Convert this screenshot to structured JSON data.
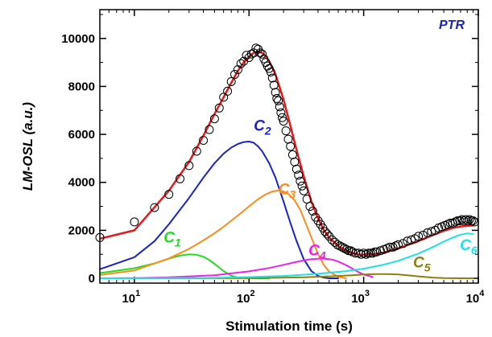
{
  "chart_data": {
    "type": "line",
    "panel_label": "PTR",
    "xlabel": "Stimulation time (s)",
    "ylabel": "LM-OSL (a.u.)",
    "xscale": "log",
    "xlim": [
      5,
      10000
    ],
    "ylim": [
      -200,
      11200
    ],
    "x_ticks": [
      {
        "value": 10,
        "base": "10",
        "exp": "1"
      },
      {
        "value": 100,
        "base": "10",
        "exp": "2"
      },
      {
        "value": 1000,
        "base": "10",
        "exp": "3"
      },
      {
        "value": 10000,
        "base": "10",
        "exp": "4"
      }
    ],
    "y_ticks": [
      {
        "value": 0,
        "label": "0"
      },
      {
        "value": 2000,
        "label": "2000"
      },
      {
        "value": 4000,
        "label": "4000"
      },
      {
        "value": 6000,
        "label": "6000"
      },
      {
        "value": 8000,
        "label": "8000"
      },
      {
        "value": 10000,
        "label": "10000"
      }
    ],
    "measured": {
      "marker": "open-circle",
      "color": "#000000",
      "x": [
        5,
        10,
        15,
        20,
        25,
        30,
        35,
        40,
        45,
        50,
        55,
        60,
        65,
        70,
        75,
        80,
        85,
        90,
        95,
        100,
        105,
        110,
        115,
        120,
        125,
        130,
        135,
        140,
        145,
        150,
        155,
        160,
        165,
        170,
        175,
        180,
        185,
        190,
        195,
        200,
        210,
        220,
        230,
        240,
        250,
        260,
        270,
        280,
        290,
        300,
        320,
        340,
        360,
        380,
        400,
        420,
        440,
        460,
        480,
        500,
        530,
        560,
        590,
        620,
        650,
        680,
        710,
        740,
        770,
        800,
        850,
        900,
        950,
        1000,
        1050,
        1100,
        1150,
        1200,
        1250,
        1300,
        1400,
        1500,
        1600,
        1700,
        1800,
        1900,
        2000,
        2200,
        2400,
        2600,
        2800,
        3000,
        3300,
        3600,
        3900,
        4200,
        4500,
        4800,
        5100,
        5400,
        5700,
        6000,
        6300,
        6600,
        6900,
        7200,
        7500,
        7800,
        8100,
        8400,
        8700,
        9000,
        9300
      ],
      "y": [
        1700,
        2350,
        2950,
        3500,
        4150,
        4700,
        5300,
        5750,
        6200,
        6650,
        7100,
        7550,
        7800,
        8200,
        8500,
        8700,
        8950,
        9050,
        9300,
        9200,
        9350,
        9400,
        9600,
        9550,
        9400,
        9350,
        9150,
        9000,
        8850,
        8750,
        8600,
        8350,
        8050,
        7750,
        7500,
        7400,
        7150,
        6900,
        6700,
        6550,
        6150,
        5800,
        5500,
        5150,
        4850,
        4550,
        4300,
        4050,
        3850,
        3650,
        3300,
        3000,
        2800,
        2550,
        2400,
        2250,
        2100,
        1950,
        1850,
        1750,
        1600,
        1500,
        1400,
        1350,
        1300,
        1250,
        1200,
        1150,
        1150,
        1100,
        1050,
        1050,
        1000,
        1050,
        1000,
        1050,
        1050,
        1050,
        1100,
        1100,
        1150,
        1200,
        1250,
        1300,
        1300,
        1350,
        1400,
        1450,
        1550,
        1600,
        1650,
        1750,
        1800,
        1900,
        1950,
        2000,
        2100,
        2150,
        2200,
        2250,
        2300,
        2300,
        2350,
        2400,
        2400,
        2450,
        2400,
        2450,
        2400,
        2450,
        2400,
        2400,
        2350
      ]
    },
    "series": [
      {
        "label_base": "",
        "label_sub": "",
        "color": "#e8181a",
        "x": [
          5,
          10,
          20,
          30,
          40,
          50,
          60,
          70,
          80,
          90,
          100,
          110,
          120,
          130,
          140,
          150,
          170,
          200,
          230,
          260,
          300,
          350,
          400,
          450,
          500,
          600,
          700,
          800,
          900,
          1000,
          1200,
          1500,
          2000,
          3000,
          4000,
          5000,
          6000,
          7000,
          8000,
          9000
        ],
        "y": [
          1650,
          2000,
          3650,
          4850,
          5950,
          6850,
          7550,
          8150,
          8650,
          9000,
          9250,
          9400,
          9450,
          9400,
          9250,
          9050,
          8500,
          7450,
          6350,
          5350,
          4250,
          3200,
          2500,
          2000,
          1700,
          1350,
          1150,
          1050,
          1000,
          980,
          1000,
          1080,
          1250,
          1550,
          1800,
          1980,
          2100,
          2160,
          2190,
          2200
        ]
      },
      {
        "label_base": "C",
        "label_sub": "1",
        "color": "#22dd22",
        "x": [
          5,
          10,
          15,
          20,
          25,
          30,
          35,
          40,
          45,
          50,
          60,
          70,
          80,
          100,
          120,
          150
        ],
        "y": [
          220,
          420,
          620,
          820,
          950,
          1000,
          980,
          900,
          760,
          600,
          300,
          110,
          30,
          0,
          0,
          0
        ]
      },
      {
        "label_base": "C",
        "label_sub": "2",
        "color": "#1a24c8",
        "x": [
          5,
          10,
          15,
          20,
          30,
          40,
          50,
          60,
          70,
          80,
          90,
          100,
          110,
          120,
          130,
          150,
          170,
          200,
          230,
          260,
          300,
          350,
          400,
          450,
          500,
          600
        ],
        "y": [
          380,
          880,
          1550,
          2250,
          3350,
          4200,
          4800,
          5200,
          5450,
          5600,
          5680,
          5700,
          5650,
          5500,
          5300,
          4800,
          4200,
          3200,
          2300,
          1550,
          800,
          300,
          100,
          30,
          0,
          0
        ]
      },
      {
        "label_base": "C",
        "label_sub": "3",
        "color": "#ff8c1a",
        "x": [
          5,
          10,
          20,
          30,
          40,
          50,
          60,
          80,
          100,
          120,
          140,
          160,
          180,
          200,
          220,
          250,
          280,
          300,
          350,
          400,
          450,
          500,
          600,
          700
        ],
        "y": [
          140,
          330,
          830,
          1230,
          1580,
          1880,
          2150,
          2620,
          3000,
          3300,
          3500,
          3620,
          3660,
          3620,
          3520,
          3250,
          2850,
          2500,
          1700,
          1000,
          550,
          280,
          60,
          0
        ]
      },
      {
        "label_base": "C",
        "label_sub": "4",
        "color": "#ee22ee",
        "x": [
          5,
          10,
          20,
          50,
          100,
          150,
          200,
          250,
          300,
          350,
          400,
          450,
          500,
          550,
          600,
          700,
          800,
          900,
          1000,
          1200
        ],
        "y": [
          0,
          10,
          40,
          130,
          290,
          430,
          560,
          670,
          750,
          800,
          820,
          820,
          800,
          760,
          700,
          550,
          400,
          260,
          160,
          50
        ]
      },
      {
        "label_base": "C",
        "label_sub": "5",
        "color": "#8f7f12",
        "x": [
          5,
          100,
          300,
          500,
          800,
          1000,
          1300,
          1600,
          2000,
          2500,
          3000,
          4000,
          5000,
          7000,
          9000
        ],
        "y": [
          0,
          5,
          40,
          80,
          130,
          160,
          180,
          180,
          160,
          120,
          80,
          30,
          10,
          0,
          0
        ]
      },
      {
        "label_base": "C",
        "label_sub": "6",
        "color": "#22e0e6",
        "x": [
          5,
          50,
          100,
          200,
          400,
          700,
          1000,
          1500,
          2000,
          3000,
          4000,
          5000,
          6000,
          7000,
          8000,
          9000
        ],
        "y": [
          0,
          20,
          50,
          100,
          190,
          300,
          400,
          570,
          730,
          1030,
          1300,
          1530,
          1700,
          1820,
          1870,
          1850
        ]
      }
    ]
  }
}
